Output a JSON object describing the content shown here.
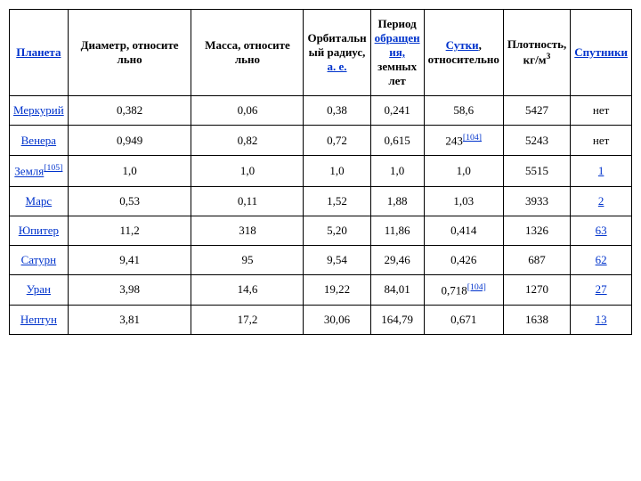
{
  "headers": {
    "planet": "Планета",
    "diameter": "Диаметр, относите льно",
    "mass": "Масса, относите льно",
    "orbital_radius_l1": "Орбитальн",
    "orbital_radius_l2": "ый радиус,",
    "orbital_radius_l3": "а. е.",
    "period_l1": "Период",
    "period_l2": "обращен",
    "period_l3": "ия,",
    "period_l4": "земных",
    "period_l5": "лет",
    "day_l1": "Сутки",
    "day_l2": "относительно",
    "density_l1": "Плотность,",
    "density_l2": "кг/м",
    "density_sup": "3",
    "moons": "Спутники"
  },
  "rows": [
    {
      "planet": "Меркурий",
      "planet_link": true,
      "planet_ref": "",
      "diameter": "0,382",
      "mass": "0,06",
      "radius": "0,38",
      "period": "0,241",
      "day": "58,6",
      "day_ref": "",
      "density": "5427",
      "moons": "нет",
      "moons_link": false
    },
    {
      "planet": "Венера",
      "planet_link": true,
      "planet_ref": "",
      "diameter": "0,949",
      "mass": "0,82",
      "radius": "0,72",
      "period": "0,615",
      "day": "243",
      "day_ref": "[104]",
      "density": "5243",
      "moons": "нет",
      "moons_link": false
    },
    {
      "planet": "Земля",
      "planet_link": true,
      "planet_ref": "[105]",
      "diameter": "1,0",
      "mass": "1,0",
      "radius": "1,0",
      "period": "1,0",
      "day": "1,0",
      "day_ref": "",
      "density": "5515",
      "moons": "1",
      "moons_link": true
    },
    {
      "planet": "Марс",
      "planet_link": true,
      "planet_ref": "",
      "diameter": "0,53",
      "mass": "0,11",
      "radius": "1,52",
      "period": "1,88",
      "day": "1,03",
      "day_ref": "",
      "density": "3933",
      "moons": "2",
      "moons_link": true
    },
    {
      "planet": "Юпитер",
      "planet_link": true,
      "planet_ref": "",
      "diameter": "11,2",
      "mass": "318",
      "radius": "5,20",
      "period": "11,86",
      "day": "0,414",
      "day_ref": "",
      "density": "1326",
      "moons": "63",
      "moons_link": true
    },
    {
      "planet": "Сатурн",
      "planet_link": true,
      "planet_ref": "",
      "diameter": "9,41",
      "mass": "95",
      "radius": "9,54",
      "period": "29,46",
      "day": "0,426",
      "day_ref": "",
      "density": "687",
      "moons": "62",
      "moons_link": true
    },
    {
      "planet": "Уран",
      "planet_link": true,
      "planet_ref": "",
      "diameter": "3,98",
      "mass": "14,6",
      "radius": "19,22",
      "period": "84,01",
      "day": "0,718",
      "day_ref": "[104]",
      "density": "1270",
      "moons": "27",
      "moons_link": true
    },
    {
      "planet": "Нептун",
      "planet_link": true,
      "planet_ref": "",
      "diameter": "3,81",
      "mass": "17,2",
      "radius": "30,06",
      "period": "164,79",
      "day": "0,671",
      "day_ref": "",
      "density": "1638",
      "moons": "13",
      "moons_link": true
    }
  ]
}
